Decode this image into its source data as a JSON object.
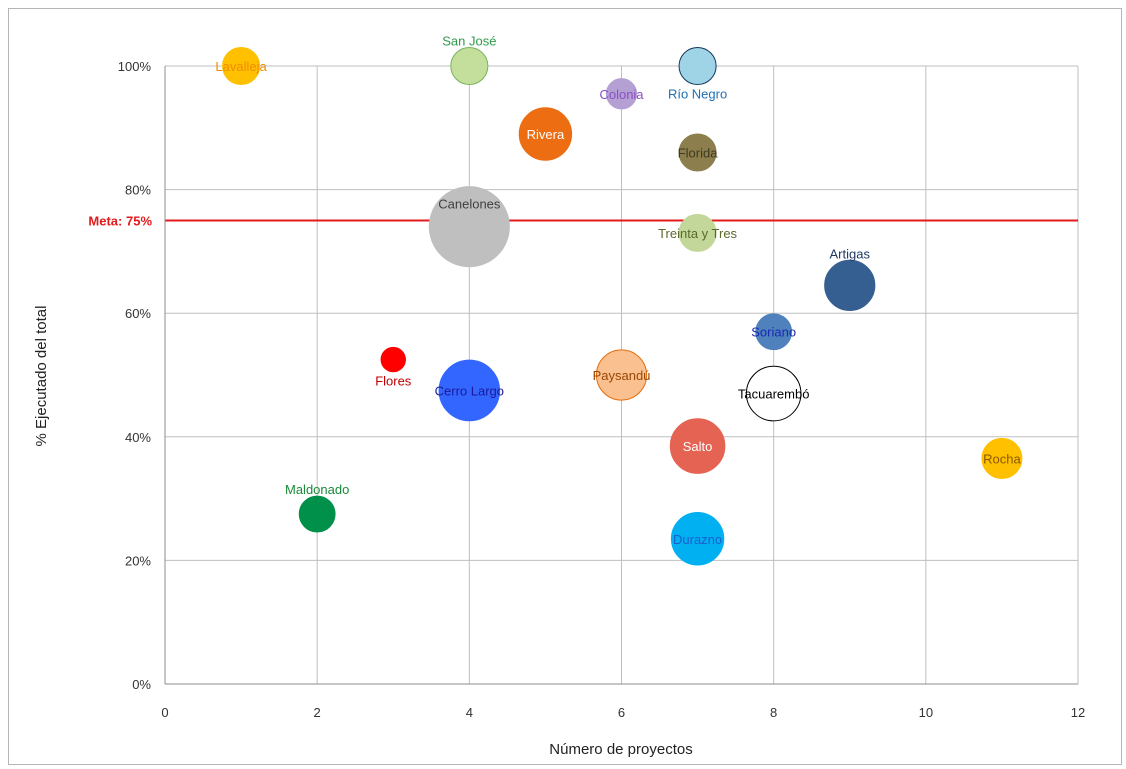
{
  "chart_data": {
    "type": "scatter",
    "subtype": "bubble",
    "title": "",
    "xlabel": "Número de proyectos",
    "ylabel": "% Ejecutado del total",
    "xlim": [
      0,
      12
    ],
    "ylim": [
      0,
      100
    ],
    "x_ticks": [
      0,
      2,
      4,
      6,
      8,
      10,
      12
    ],
    "y_ticks": [
      0,
      20,
      40,
      60,
      80,
      100
    ],
    "y_tick_labels": [
      "0%",
      "20%",
      "40%",
      "60%",
      "80%",
      "100%"
    ],
    "grid": true,
    "reference_line": {
      "y": 75,
      "label": "Meta: 75%",
      "color": "#e31a1c"
    },
    "points": [
      {
        "name": "Lavalleja",
        "x": 1,
        "y": 100,
        "size": 3,
        "fill": "#ffc000",
        "stroke": "#ffc000",
        "text_color": "#f08c00",
        "label_pos": "center"
      },
      {
        "name": "San José",
        "x": 4,
        "y": 100,
        "size": 3,
        "fill": "#c4df9b",
        "stroke": "#77b35b",
        "text_color": "#2e9a4a",
        "label_pos": "top"
      },
      {
        "name": "Colonia",
        "x": 6,
        "y": 95.5,
        "size": 2,
        "fill": "#b4a0d2",
        "stroke": "#b4a0d2",
        "text_color": "#8a4fc4",
        "label_pos": "center"
      },
      {
        "name": "Río Negro",
        "x": 7,
        "y": 100,
        "size": 3,
        "fill": "#9fd4e6",
        "stroke": "#17375e",
        "text_color": "#1f6fb2",
        "label_pos": "bottom"
      },
      {
        "name": "Rivera",
        "x": 5,
        "y": 89,
        "size": 6,
        "fill": "#ed6d12",
        "stroke": "#ed6d12",
        "text_color": "#ffffff",
        "label_pos": "center"
      },
      {
        "name": "Florida",
        "x": 7,
        "y": 86,
        "size": 3,
        "fill": "#8c7f4d",
        "stroke": "#8c7f4d",
        "text_color": "#3f3a1f",
        "label_pos": "center"
      },
      {
        "name": "Canelones",
        "x": 4,
        "y": 74,
        "size": 14,
        "fill": "#bfbfbf",
        "stroke": "#bfbfbf",
        "text_color": "#404040",
        "label_pos": "upper"
      },
      {
        "name": "Treinta y Tres",
        "x": 7,
        "y": 73,
        "size": 3,
        "fill": "#c4d79b",
        "stroke": "#c4d79b",
        "text_color": "#5a6a2a",
        "label_pos": "center"
      },
      {
        "name": "Artigas",
        "x": 9,
        "y": 64.5,
        "size": 5.5,
        "fill": "#365f91",
        "stroke": "#365f91",
        "text_color": "#1f3864",
        "label_pos": "top"
      },
      {
        "name": "Soriano",
        "x": 8,
        "y": 57,
        "size": 2.8,
        "fill": "#4f81bd",
        "stroke": "#4f81bd",
        "text_color": "#1a2bb0",
        "label_pos": "center"
      },
      {
        "name": "Flores",
        "x": 3,
        "y": 52.5,
        "size": 1.3,
        "fill": "#ff0000",
        "stroke": "#ff0000",
        "text_color": "#c00000",
        "label_pos": "bottom"
      },
      {
        "name": "Paysandú",
        "x": 6,
        "y": 50,
        "size": 5.5,
        "fill": "#fac08f",
        "stroke": "#e46c0a",
        "text_color": "#984807",
        "label_pos": "center"
      },
      {
        "name": "Cerro Largo",
        "x": 4,
        "y": 47.5,
        "size": 8,
        "fill": "#3366ff",
        "stroke": "#3366ff",
        "text_color": "#1a1a9a",
        "label_pos": "center"
      },
      {
        "name": "Tacuarembó",
        "x": 8,
        "y": 47,
        "size": 6.5,
        "fill": "#ffffff",
        "stroke": "#000000",
        "text_color": "#000000",
        "label_pos": "center"
      },
      {
        "name": "Salto",
        "x": 7,
        "y": 38.5,
        "size": 6.5,
        "fill": "#e46352",
        "stroke": "#e46352",
        "text_color": "#ffffff",
        "label_pos": "center"
      },
      {
        "name": "Rocha",
        "x": 11,
        "y": 36.5,
        "size": 3.5,
        "fill": "#ffc000",
        "stroke": "#ffc000",
        "text_color": "#8a5a00",
        "label_pos": "center"
      },
      {
        "name": "Maldonado",
        "x": 2,
        "y": 27.5,
        "size": 2.8,
        "fill": "#00904a",
        "stroke": "#00904a",
        "text_color": "#1a8a3a",
        "label_pos": "top"
      },
      {
        "name": "Durazno",
        "x": 7,
        "y": 23.5,
        "size": 6,
        "fill": "#00b0f0",
        "stroke": "#00b0f0",
        "text_color": "#1a5fd0",
        "label_pos": "center"
      }
    ]
  }
}
